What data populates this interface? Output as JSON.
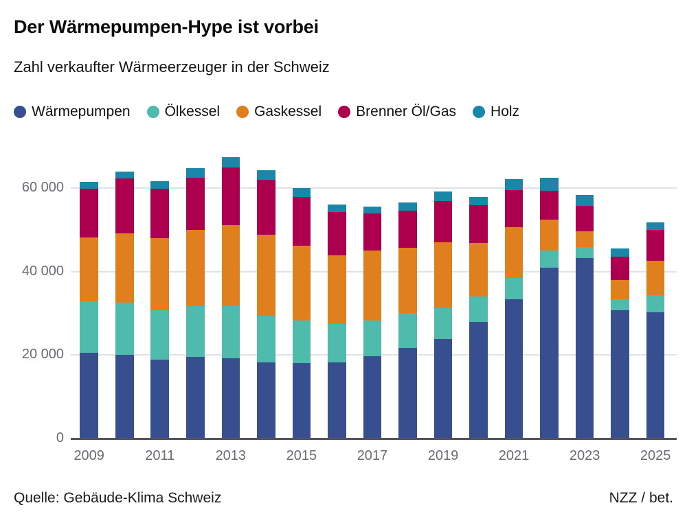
{
  "header": {
    "title": "Der Wärmepumpen-Hype ist vorbei",
    "subtitle": "Zahl verkaufter Wärmeerzeuger in der Schweiz"
  },
  "footer": {
    "source": "Quelle: Gebäude-Klima Schweiz",
    "credit": "NZZ / bet."
  },
  "colors": {
    "waermepumpen": "#374f8e",
    "oelkessel": "#4fbbac",
    "gaskessel": "#df7f1e",
    "brenner_oel_gas": "#ac004f",
    "holz": "#1b87a8",
    "gridline": "#e1e2e8",
    "axis": "#54545c",
    "tick_text": "#6b6b76"
  },
  "chart_data": {
    "type": "bar",
    "stacked": true,
    "title": "Der Wärmepumpen-Hype ist vorbei",
    "subtitle": "Zahl verkaufter Wärmeerzeuger in der Schweiz",
    "xlabel": "",
    "ylabel": "",
    "grid": "horizontal",
    "legend_position": "top",
    "ylim": [
      0,
      68000
    ],
    "yticks": [
      0,
      20000,
      40000,
      60000
    ],
    "ytick_labels": [
      "0",
      "20 000",
      "40 000",
      "60 000"
    ],
    "categories": [
      2009,
      2010,
      2011,
      2012,
      2013,
      2014,
      2015,
      2016,
      2017,
      2018,
      2019,
      2020,
      2021,
      2022,
      2023,
      2024,
      2025
    ],
    "xtick_labels": [
      "2009",
      "2011",
      "2013",
      "2015",
      "2017",
      "2019",
      "2021",
      "2023",
      "2025"
    ],
    "series": [
      {
        "key": "waermepumpen",
        "name": "Wärmepumpen",
        "color": "#374f8e",
        "values": [
          20500,
          20100,
          18900,
          19500,
          19200,
          18300,
          18100,
          18300,
          19800,
          21700,
          23800,
          27900,
          33400,
          40900,
          43300,
          30700,
          30300
        ]
      },
      {
        "key": "oelkessel",
        "name": "Ölkessel",
        "color": "#4fbbac",
        "values": [
          12300,
          12400,
          11800,
          12200,
          12500,
          11200,
          10100,
          9200,
          8400,
          8400,
          7500,
          6100,
          5000,
          4100,
          2500,
          2600,
          4100
        ]
      },
      {
        "key": "gaskessel",
        "name": "Gaskessel",
        "color": "#df7f1e",
        "values": [
          15400,
          16700,
          17300,
          18300,
          19400,
          19300,
          18000,
          16400,
          16900,
          15600,
          15700,
          12800,
          12300,
          7500,
          3900,
          4700,
          8100
        ]
      },
      {
        "key": "brenner-oel-gas",
        "name": "Brenner Öl/Gas",
        "color": "#ac004f",
        "values": [
          11700,
          13100,
          11800,
          12500,
          13900,
          13100,
          11700,
          10400,
          8800,
          8900,
          9800,
          9100,
          8800,
          6900,
          6100,
          5500,
          7400
        ]
      },
      {
        "key": "holz",
        "name": "Holz",
        "color": "#1b87a8",
        "values": [
          1600,
          1600,
          1800,
          2300,
          2400,
          2300,
          2100,
          1700,
          1700,
          2000,
          2400,
          2000,
          2600,
          3100,
          2600,
          2100,
          1900
        ]
      }
    ]
  }
}
